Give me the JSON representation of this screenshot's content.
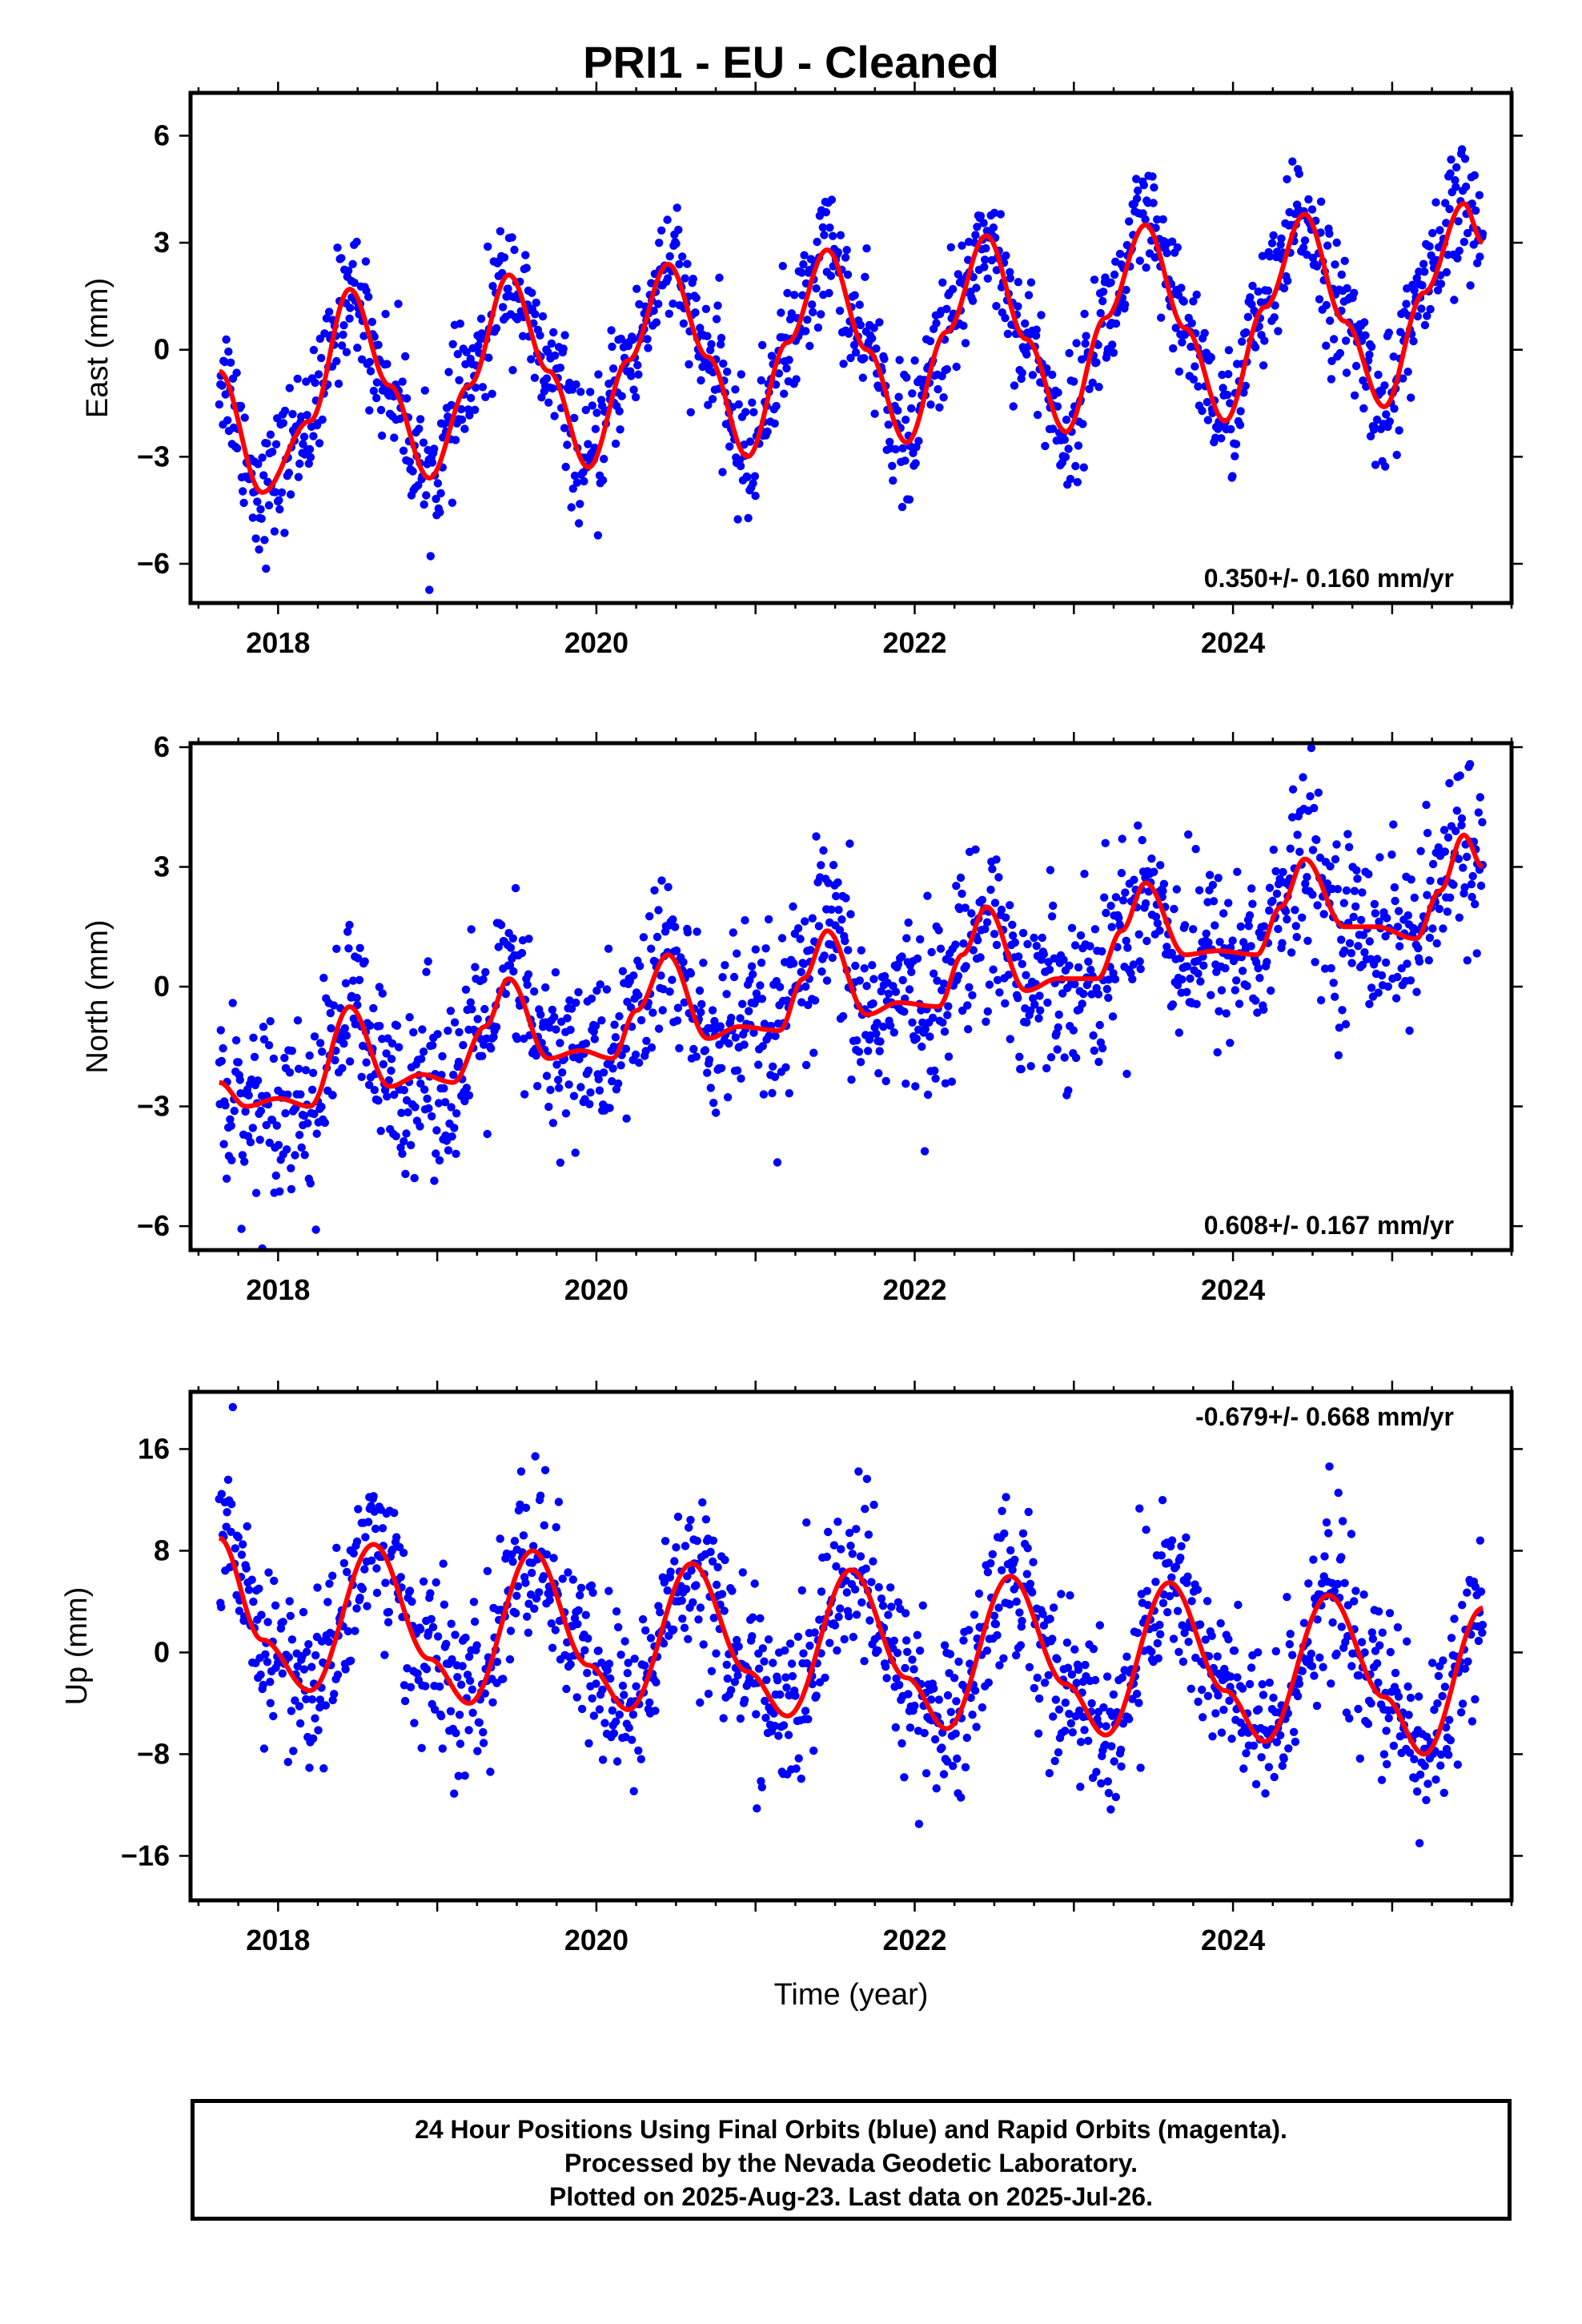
{
  "title": "PRI1  - EU - Cleaned",
  "colors": {
    "points": "#0000ff",
    "model": "#ff0000",
    "frame": "#000000"
  },
  "caption": {
    "line1": "24 Hour Positions Using Final Orbits (blue) and Rapid Orbits (magenta).",
    "line2": "Processed by the Nevada Geodetic Laboratory.",
    "line3": "Plotted on 2025-Aug-23. Last data on 2025-Jul-26."
  },
  "chart_data": [
    {
      "type": "scatter",
      "ylabel": "East (mm)",
      "xlabel": "",
      "xlim": [
        2017.45,
        2025.75
      ],
      "ylim": [
        -7.1,
        7.2
      ],
      "xticks": [
        "2018",
        "2020",
        "2022",
        "2024"
      ],
      "yticks": [
        "6",
        "3",
        "0",
        "−3",
        "−6"
      ],
      "ytick_values": [
        6,
        3,
        0,
        -3,
        -6
      ],
      "rate_label": "0.350+/- 0.160 mm/yr",
      "rate_position": "bottom-right",
      "time_span": [
        2017.63,
        2025.57
      ],
      "model_curve": {
        "description": "red seasonal fit",
        "x": [
          2017.63,
          2017.9,
          2018.2,
          2018.45,
          2018.7,
          2018.95,
          2019.2,
          2019.45,
          2019.7,
          2019.95,
          2020.2,
          2020.45,
          2020.7,
          2020.95,
          2021.2,
          2021.45,
          2021.7,
          2021.95,
          2022.2,
          2022.45,
          2022.7,
          2022.95,
          2023.2,
          2023.45,
          2023.7,
          2023.95,
          2024.2,
          2024.45,
          2024.7,
          2024.95,
          2025.2,
          2025.45,
          2025.57
        ],
        "y": [
          -0.6,
          -4.0,
          -2.0,
          1.7,
          -1.0,
          -3.6,
          -1.0,
          2.1,
          -0.6,
          -3.3,
          -0.3,
          2.4,
          -0.2,
          -3.0,
          0.2,
          2.8,
          0.0,
          -2.6,
          0.5,
          3.2,
          0.3,
          -2.3,
          0.9,
          3.5,
          0.6,
          -2.0,
          1.2,
          3.8,
          0.8,
          -1.6,
          1.6,
          4.1,
          3.0
        ]
      },
      "point_scatter_sd": 0.9
    },
    {
      "type": "scatter",
      "ylabel": "North (mm)",
      "xlabel": "",
      "xlim": [
        2017.45,
        2025.75
      ],
      "ylim": [
        -6.6,
        6.1
      ],
      "xticks": [
        "2018",
        "2020",
        "2022",
        "2024"
      ],
      "yticks": [
        "6",
        "3",
        "0",
        "−3",
        "−6"
      ],
      "ytick_values": [
        6,
        3,
        0,
        -3,
        -6
      ],
      "rate_label": "0.608+/- 0.167 mm/yr",
      "rate_position": "bottom-right",
      "time_span": [
        2017.63,
        2025.57
      ],
      "model_curve": {
        "description": "red seasonal fit",
        "x": [
          2017.63,
          2017.8,
          2018.0,
          2018.2,
          2018.45,
          2018.7,
          2018.9,
          2019.1,
          2019.3,
          2019.45,
          2019.7,
          2019.9,
          2020.1,
          2020.25,
          2020.45,
          2020.7,
          2020.9,
          2021.15,
          2021.3,
          2021.45,
          2021.7,
          2021.9,
          2022.15,
          2022.3,
          2022.45,
          2022.7,
          2022.9,
          2023.15,
          2023.3,
          2023.45,
          2023.7,
          2023.9,
          2024.15,
          2024.3,
          2024.45,
          2024.7,
          2024.9,
          2025.15,
          2025.3,
          2025.45,
          2025.57
        ],
        "y": [
          -2.4,
          -3.0,
          -2.8,
          -3.0,
          -0.5,
          -2.5,
          -2.2,
          -2.4,
          -1.0,
          0.2,
          -1.8,
          -1.6,
          -1.8,
          -0.6,
          0.8,
          -1.3,
          -1.0,
          -1.1,
          0.2,
          1.4,
          -0.7,
          -0.4,
          -0.5,
          0.8,
          2.0,
          -0.1,
          0.2,
          0.2,
          1.4,
          2.6,
          0.8,
          0.9,
          0.8,
          2.0,
          3.2,
          1.5,
          1.5,
          1.2,
          2.4,
          3.8,
          3.0
        ]
      },
      "point_scatter_sd": 1.1
    },
    {
      "type": "scatter",
      "ylabel": "Up (mm)",
      "xlabel": "Time (year)",
      "xlim": [
        2017.45,
        2025.75
      ],
      "ylim": [
        -19.5,
        20.5
      ],
      "xticks": [
        "2018",
        "2020",
        "2022",
        "2024"
      ],
      "yticks": [
        "16",
        "8",
        "0",
        "−8",
        "−16"
      ],
      "ytick_values": [
        16,
        8,
        0,
        -8,
        -16
      ],
      "rate_label": "-0.679+/- 0.668 mm/yr",
      "rate_position": "top-right",
      "time_span": [
        2017.63,
        2025.57
      ],
      "model_curve": {
        "description": "red seasonal fit",
        "x": [
          2017.63,
          2017.9,
          2018.2,
          2018.6,
          2018.95,
          2019.2,
          2019.6,
          2019.95,
          2020.2,
          2020.6,
          2020.95,
          2021.2,
          2021.6,
          2021.95,
          2022.2,
          2022.6,
          2022.95,
          2023.2,
          2023.6,
          2023.95,
          2024.2,
          2024.6,
          2024.95,
          2025.2,
          2025.57
        ],
        "y": [
          9.0,
          1.0,
          -3.0,
          8.5,
          -0.5,
          -4.0,
          8.0,
          -1.0,
          -4.5,
          7.0,
          -1.5,
          -5.0,
          6.5,
          -2.0,
          -6.0,
          6.0,
          -2.5,
          -6.5,
          5.5,
          -3.0,
          -7.0,
          4.5,
          -3.5,
          -8.0,
          3.5
        ]
      },
      "point_scatter_sd": 3.4
    }
  ]
}
